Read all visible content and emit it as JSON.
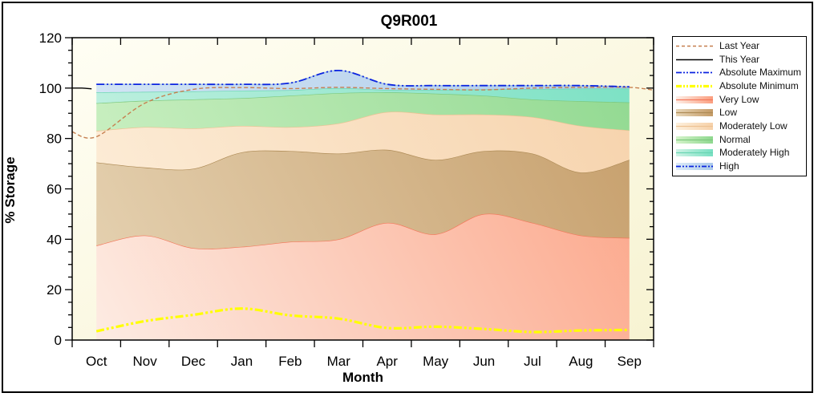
{
  "window": {
    "border_color": "#000000",
    "background": "#ffffff"
  },
  "chart_data": {
    "type": "area",
    "title": "Q9R001",
    "xlabel": "Month",
    "ylabel": "% Storage",
    "ylim": [
      0,
      120
    ],
    "y_major_step": 20,
    "y_minor_step": 5,
    "grid": "off",
    "legend_position": "right",
    "plot_bg_from": "#fffef4",
    "plot_bg_to": "#f7f3d2",
    "x_categories": [
      "Oct",
      "Nov",
      "Dec",
      "Jan",
      "Feb",
      "Mar",
      "Apr",
      "May",
      "Jun",
      "Jul",
      "Aug",
      "Sep"
    ],
    "bands": [
      {
        "key": "very-low",
        "name": "Very Low",
        "fill_from": "#fdeee6",
        "fill_to": "#fb9e7f",
        "stroke": "#f4775a",
        "top": [
          37.5,
          41.5,
          36.5,
          37,
          39,
          40,
          46.5,
          42,
          50,
          46.5,
          41.5,
          40.5
        ]
      },
      {
        "key": "low",
        "name": "Low",
        "fill_from": "#e7d5b6",
        "fill_to": "#c49b66",
        "stroke": "#ae8b56",
        "top": [
          70.5,
          68.5,
          68,
          74.5,
          75,
          74,
          75.5,
          71.5,
          75,
          74,
          66.5,
          71.5
        ]
      },
      {
        "key": "moderately-low",
        "name": "Moderately Low",
        "fill_from": "#fdf0dd",
        "fill_to": "#f6d1a9",
        "stroke": "#edc293",
        "top": [
          83,
          84.5,
          84,
          85,
          84.5,
          86,
          90.5,
          89.5,
          89.5,
          88.5,
          85,
          83.2
        ]
      },
      {
        "key": "normal",
        "name": "Normal",
        "fill_from": "#d4f3ca",
        "fill_to": "#8ed88e",
        "stroke": "#7cc87c",
        "top": [
          94,
          95,
          95.5,
          96,
          97,
          98,
          98.3,
          97.8,
          97,
          95.5,
          94.8,
          94.3
        ]
      },
      {
        "key": "moderately-high",
        "name": "Moderately High",
        "fill_from": "#cdf3e5",
        "fill_to": "#77e0c2",
        "stroke": "#69d5b3",
        "top": [
          98.3,
          98.5,
          98.7,
          99,
          99.2,
          100,
          99.3,
          99.3,
          99.5,
          99.6,
          99.8,
          99.8
        ]
      },
      {
        "key": "high",
        "name": "High",
        "fill_from": "#dcebf7",
        "fill_to": "#abc9e9",
        "stroke": "#9fc0e2",
        "top": [
          101.5,
          101.5,
          101.5,
          101.5,
          102,
          107,
          101.5,
          101,
          101,
          101,
          101,
          100.5
        ]
      }
    ],
    "lines": [
      {
        "key": "last-year",
        "name": "Last Year",
        "color": "#c67f4f",
        "dash": "5 3",
        "width": 1.4,
        "values": [
          80.7,
          94,
          99.5,
          100.2,
          99.8,
          100.3,
          99.8,
          99.5,
          99.3,
          100,
          100.3,
          100.3
        ],
        "edge_start": 82.6,
        "edge_end": 99.2
      },
      {
        "key": "this-year",
        "name": "This Year",
        "color": "#000000",
        "dash": "",
        "width": 1.4,
        "pre_season_segment": [
          100,
          99.7
        ]
      },
      {
        "key": "absolute-maximum",
        "name": "Absolute Maximum",
        "color": "#0b24e0",
        "dash": "10 3 2 3 2 3",
        "width": 1.8,
        "values": [
          101.5,
          101.5,
          101.5,
          101.5,
          102,
          107,
          101.5,
          101,
          101,
          101,
          101,
          100.5
        ]
      },
      {
        "key": "absolute-minimum",
        "name": "Absolute Minimum",
        "color": "#ffff00",
        "dash": "10 3 3 3 3 3",
        "width": 3.2,
        "values": [
          3.5,
          7.5,
          10,
          12.5,
          9.8,
          8.5,
          4.8,
          5.3,
          4.4,
          3.2,
          3.8,
          4
        ]
      }
    ],
    "legend": [
      {
        "label": "Last Year",
        "line": "last-year"
      },
      {
        "label": "This Year",
        "line": "this-year"
      },
      {
        "label": "Absolute Maximum",
        "line": "absolute-maximum"
      },
      {
        "label": "Absolute Minimum",
        "line": "absolute-minimum"
      },
      {
        "label": "Very Low",
        "band": "very-low"
      },
      {
        "label": "Low",
        "band": "low"
      },
      {
        "label": "Moderately Low",
        "band": "moderately-low"
      },
      {
        "label": "Normal",
        "band": "normal"
      },
      {
        "label": "Moderately High",
        "band": "moderately-high"
      },
      {
        "label": "High",
        "band": "high",
        "line": "absolute-maximum"
      }
    ]
  }
}
